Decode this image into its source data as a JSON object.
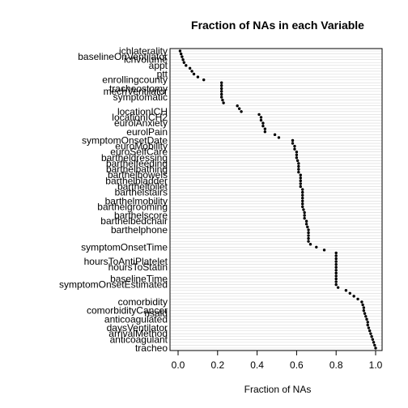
{
  "chart_data": {
    "type": "scatter",
    "title": "Fraction of NAs in each Variable",
    "xlabel": "Fraction of NAs",
    "ylabel": "",
    "xlim": [
      0,
      1
    ],
    "x_ticks": [
      "0.0",
      "0.2",
      "0.4",
      "0.6",
      "0.8",
      "1.0"
    ],
    "grid": true,
    "grid_direction": "horizontal",
    "point_color": "#000000",
    "variables": [
      {
        "name": "ichlaterality",
        "value": 0.01
      },
      {
        "name": "",
        "value": 0.015
      },
      {
        "name": "baselineOnVentilator",
        "value": 0.02
      },
      {
        "name": "ichvolume",
        "value": 0.025
      },
      {
        "name": "",
        "value": 0.03
      },
      {
        "name": "appt",
        "value": 0.04
      },
      {
        "name": "",
        "value": 0.06
      },
      {
        "name": "",
        "value": 0.07
      },
      {
        "name": "ptt",
        "value": 0.08
      },
      {
        "name": "",
        "value": 0.1
      },
      {
        "name": "enrollingcounty",
        "value": 0.13
      },
      {
        "name": "",
        "value": 0.22
      },
      {
        "name": "",
        "value": 0.22
      },
      {
        "name": "tracheostomy",
        "value": 0.22
      },
      {
        "name": "mechVentilator",
        "value": 0.22
      },
      {
        "name": "",
        "value": 0.22
      },
      {
        "name": "symptomatic",
        "value": 0.22
      },
      {
        "name": "",
        "value": 0.225
      },
      {
        "name": "",
        "value": 0.23
      },
      {
        "name": "",
        "value": 0.3
      },
      {
        "name": "",
        "value": 0.31
      },
      {
        "name": "locationICH",
        "value": 0.32
      },
      {
        "name": "",
        "value": 0.41
      },
      {
        "name": "locationICH2",
        "value": 0.42
      },
      {
        "name": "",
        "value": 0.42
      },
      {
        "name": "eurolAnxiety",
        "value": 0.43
      },
      {
        "name": "",
        "value": 0.43
      },
      {
        "name": "",
        "value": 0.44
      },
      {
        "name": "eurolPain",
        "value": 0.44
      },
      {
        "name": "",
        "value": 0.49
      },
      {
        "name": "",
        "value": 0.51
      },
      {
        "name": "symptomOnsetDate",
        "value": 0.58
      },
      {
        "name": "",
        "value": 0.58
      },
      {
        "name": "euroMobility",
        "value": 0.59
      },
      {
        "name": "",
        "value": 0.59
      },
      {
        "name": "euroSelfCare",
        "value": 0.6
      },
      {
        "name": "",
        "value": 0.6
      },
      {
        "name": "bartheldressing",
        "value": 0.6
      },
      {
        "name": "",
        "value": 0.605
      },
      {
        "name": "barthelfeeding",
        "value": 0.61
      },
      {
        "name": "",
        "value": 0.61
      },
      {
        "name": "barthelbathing",
        "value": 0.61
      },
      {
        "name": "",
        "value": 0.61
      },
      {
        "name": "barthelbowels",
        "value": 0.62
      },
      {
        "name": "",
        "value": 0.62
      },
      {
        "name": "barthelbladder",
        "value": 0.62
      },
      {
        "name": "",
        "value": 0.62
      },
      {
        "name": "bartheltoilet",
        "value": 0.62
      },
      {
        "name": "",
        "value": 0.63
      },
      {
        "name": "barthelstairs",
        "value": 0.63
      },
      {
        "name": "",
        "value": 0.63
      },
      {
        "name": "",
        "value": 0.63
      },
      {
        "name": "barthelmobility",
        "value": 0.63
      },
      {
        "name": "",
        "value": 0.63
      },
      {
        "name": "barthelgrooming",
        "value": 0.63
      },
      {
        "name": "",
        "value": 0.635
      },
      {
        "name": "",
        "value": 0.64
      },
      {
        "name": "barthelscore",
        "value": 0.64
      },
      {
        "name": "",
        "value": 0.64
      },
      {
        "name": "barthelbedchair",
        "value": 0.65
      },
      {
        "name": "",
        "value": 0.65
      },
      {
        "name": "",
        "value": 0.655
      },
      {
        "name": "barthelphone",
        "value": 0.66
      },
      {
        "name": "",
        "value": 0.66
      },
      {
        "name": "",
        "value": 0.66
      },
      {
        "name": "",
        "value": 0.66
      },
      {
        "name": "",
        "value": 0.66
      },
      {
        "name": "",
        "value": 0.67
      },
      {
        "name": "symptomOnsetTime",
        "value": 0.7
      },
      {
        "name": "",
        "value": 0.74
      },
      {
        "name": "",
        "value": 0.8
      },
      {
        "name": "",
        "value": 0.8
      },
      {
        "name": "",
        "value": 0.8
      },
      {
        "name": "hoursToAntiPlatelet",
        "value": 0.8
      },
      {
        "name": "",
        "value": 0.8
      },
      {
        "name": "hoursToStatin",
        "value": 0.8
      },
      {
        "name": "",
        "value": 0.8
      },
      {
        "name": "",
        "value": 0.8
      },
      {
        "name": "",
        "value": 0.8
      },
      {
        "name": "baselineTime",
        "value": 0.8
      },
      {
        "name": "",
        "value": 0.8
      },
      {
        "name": "symptomOnsetEstimated",
        "value": 0.8
      },
      {
        "name": "",
        "value": 0.81
      },
      {
        "name": "",
        "value": 0.85
      },
      {
        "name": "",
        "value": 0.87
      },
      {
        "name": "",
        "value": 0.89
      },
      {
        "name": "",
        "value": 0.91
      },
      {
        "name": "comorbidity",
        "value": 0.93
      },
      {
        "name": "",
        "value": 0.935
      },
      {
        "name": "",
        "value": 0.94
      },
      {
        "name": "comorbidityCancer",
        "value": 0.94
      },
      {
        "name": "nsaid",
        "value": 0.945
      },
      {
        "name": "",
        "value": 0.95
      },
      {
        "name": "anticoagulated",
        "value": 0.955
      },
      {
        "name": "",
        "value": 0.96
      },
      {
        "name": "",
        "value": 0.96
      },
      {
        "name": "daysVentilator",
        "value": 0.965
      },
      {
        "name": "",
        "value": 0.97
      },
      {
        "name": "arrivalMethod",
        "value": 0.975
      },
      {
        "name": "",
        "value": 0.98
      },
      {
        "name": "anticoagulant",
        "value": 0.985
      },
      {
        "name": "",
        "value": 0.99
      },
      {
        "name": "",
        "value": 0.995
      },
      {
        "name": "tracheo",
        "value": 1.0
      }
    ]
  }
}
